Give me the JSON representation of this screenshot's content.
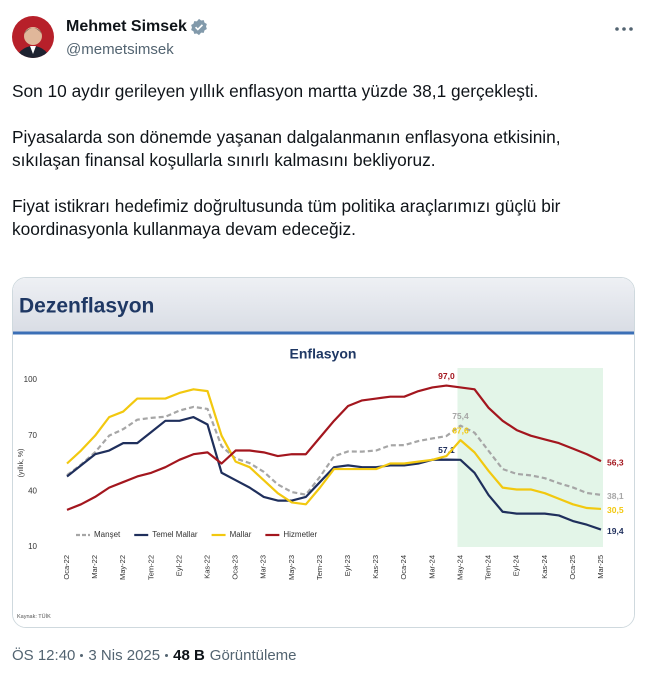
{
  "author": {
    "name": "Mehmet Simsek",
    "handle": "@memetsimsek"
  },
  "tweet": {
    "paragraphs": [
      "Son 10 aydır gerileyen yıllık enflasyon martta yüzde 38,1 gerçekleşti.",
      "Piyasalarda son dönemde yaşanan dalgalanmanın enflasyona etkisinin, sıkılaşan finansal koşullarla sınırlı kalmasını bekliyoruz.",
      "Fiyat istikrarı hedefimiz doğrultusunda tüm politika araçlarımızı güçlü bir koordinasyonla kullanmaya devam edeceğiz."
    ]
  },
  "card": {
    "header": "Dezenflasyon",
    "source": "Kaynak: TÜİK"
  },
  "chart_data": {
    "type": "line",
    "title": "Enflasyon",
    "y_label": "(yıllık, %)",
    "categories": [
      "Oca-22",
      null,
      "Mar-22",
      null,
      "May-22",
      null,
      "Tem-22",
      null,
      "Eyl-22",
      null,
      "Kas-22",
      null,
      "Oca-23",
      null,
      "Mar-23",
      null,
      "May-23",
      null,
      "Tem-23",
      null,
      "Eyl-23",
      null,
      "Kas-23",
      null,
      "Oca-24",
      null,
      "Mar-24",
      null,
      "May-24",
      null,
      "Tem-24",
      null,
      "Eyl-24",
      null,
      "Kas-24",
      null,
      "Oca-25",
      null,
      "Mar-25"
    ],
    "ylim": [
      10,
      100
    ],
    "yticks": [
      10,
      40,
      70,
      100
    ],
    "grid": false,
    "legend": "bottom-left",
    "shaded_from": "May-24",
    "shaded_to": "Mar-25",
    "shade_color": "#e3f5e8",
    "series": [
      {
        "name": "Manşet",
        "color": "#a6a6a6",
        "dashed": true,
        "values": [
          48.7,
          54.4,
          61.1,
          70.0,
          73.5,
          78.6,
          79.6,
          80.2,
          83.5,
          85.5,
          84.4,
          64.3,
          57.7,
          55.2,
          50.5,
          43.7,
          39.6,
          38.2,
          47.8,
          58.9,
          61.5,
          61.4,
          62.0,
          64.8,
          64.9,
          67.1,
          68.5,
          69.8,
          75.4,
          71.6,
          61.8,
          52.0,
          49.4,
          48.6,
          47.1,
          44.4,
          42.1,
          39.1,
          38.1
        ],
        "value_labels": [
          null,
          null,
          null,
          null,
          null,
          null,
          null,
          null,
          null,
          null,
          null,
          null,
          null,
          null,
          null,
          null,
          null,
          null,
          null,
          null,
          null,
          null,
          null,
          null,
          null,
          null,
          null,
          null,
          "75,4",
          null,
          null,
          null,
          null,
          null,
          null,
          null,
          null,
          null,
          "38,1"
        ]
      },
      {
        "name": "Temel Mallar",
        "color": "#1f2f5c",
        "dashed": false,
        "values": [
          48,
          54,
          60,
          62,
          66,
          66,
          72,
          78,
          78,
          80,
          76,
          50,
          46,
          42,
          37,
          35,
          35,
          37,
          45,
          53,
          54,
          53,
          53,
          54,
          54,
          55,
          57,
          57.1,
          57,
          50,
          38,
          29,
          28,
          28,
          28,
          27,
          24,
          22,
          19.4
        ],
        "value_labels": [
          null,
          null,
          null,
          null,
          null,
          null,
          null,
          null,
          null,
          null,
          null,
          null,
          null,
          null,
          null,
          null,
          null,
          null,
          null,
          null,
          null,
          null,
          null,
          null,
          null,
          null,
          null,
          "57,1",
          null,
          null,
          null,
          null,
          null,
          null,
          null,
          null,
          null,
          null,
          "19,4"
        ]
      },
      {
        "name": "Mallar",
        "color": "#f2c80f",
        "dashed": false,
        "values": [
          55,
          62,
          70,
          80,
          83,
          90,
          90,
          90,
          93,
          95,
          94,
          70,
          56,
          53,
          46,
          39,
          34,
          33,
          42,
          52,
          52,
          52,
          52,
          55,
          55,
          56,
          57,
          59,
          67.6,
          61,
          51,
          42,
          41,
          41,
          39,
          36,
          33,
          31,
          30.5
        ],
        "value_labels": [
          null,
          null,
          null,
          null,
          null,
          null,
          null,
          null,
          null,
          null,
          null,
          null,
          null,
          null,
          null,
          null,
          null,
          null,
          null,
          null,
          null,
          null,
          null,
          null,
          null,
          null,
          null,
          null,
          "67,6",
          null,
          null,
          null,
          null,
          null,
          null,
          null,
          null,
          null,
          "30,5"
        ]
      },
      {
        "name": "Hizmetler",
        "color": "#a3161e",
        "dashed": false,
        "values": [
          30,
          33,
          37,
          42,
          45,
          48,
          50,
          53,
          57,
          60,
          61,
          55,
          62,
          62,
          61,
          59,
          60,
          60,
          69,
          78,
          86,
          89,
          90,
          91,
          91,
          94,
          96,
          97.0,
          96,
          95,
          85,
          78,
          73,
          70,
          68,
          66,
          63,
          60,
          56.3
        ],
        "value_labels": [
          null,
          null,
          null,
          null,
          null,
          null,
          null,
          null,
          null,
          null,
          null,
          null,
          null,
          null,
          null,
          null,
          null,
          null,
          null,
          null,
          null,
          null,
          null,
          null,
          null,
          null,
          null,
          "97,0",
          null,
          null,
          null,
          null,
          null,
          null,
          null,
          null,
          null,
          null,
          "56,3"
        ]
      }
    ]
  },
  "footer": {
    "time": "ÖS 12:40",
    "date": "3 Nis 2025",
    "views": "48 B",
    "views_label": "Görüntüleme"
  }
}
